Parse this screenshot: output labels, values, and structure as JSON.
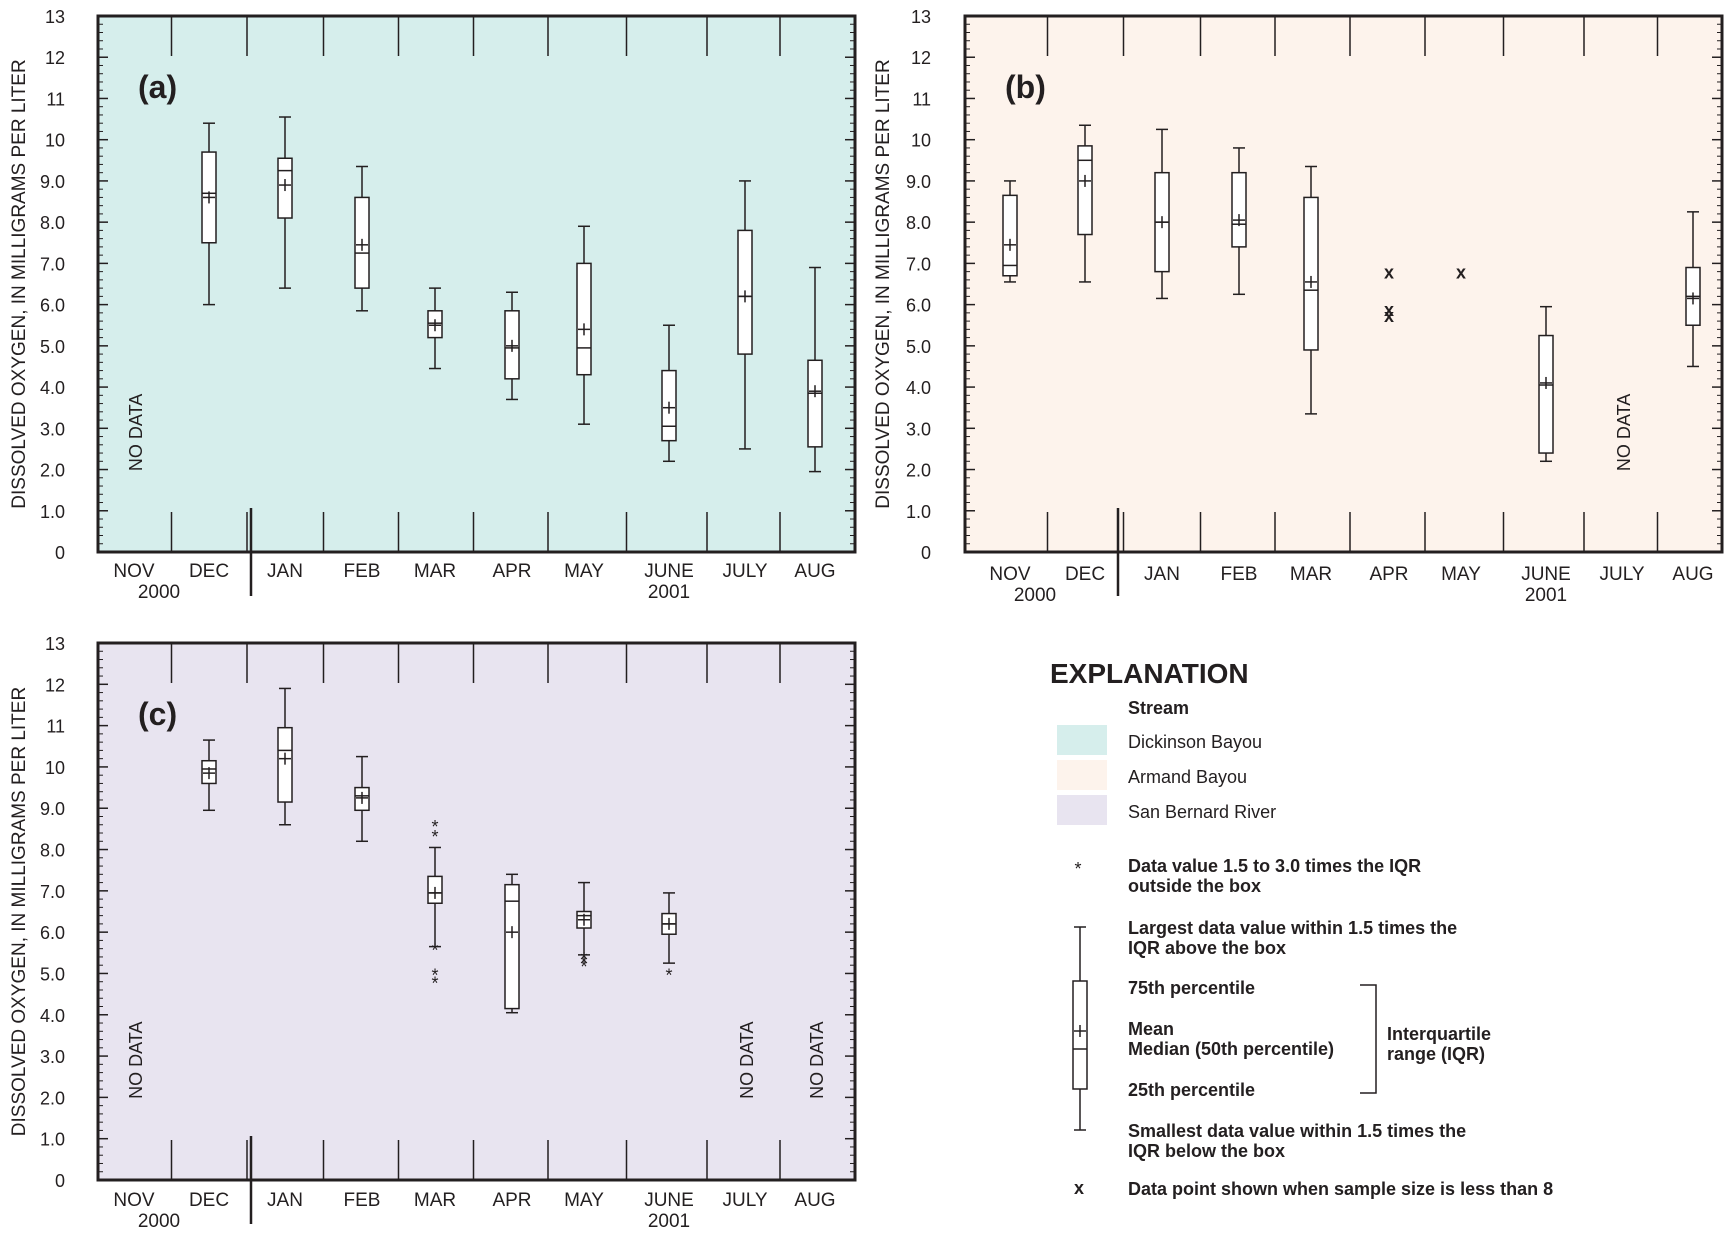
{
  "chart_data": [
    {
      "panel": "(a)",
      "type": "box",
      "ylabel": "DISSOLVED OXYGEN, IN MILLIGRAMS PER LITER",
      "ylim": [
        0,
        13
      ],
      "y_ticks": [
        "0",
        "1.0",
        "2.0",
        "3.0",
        "4.0",
        "5.0",
        "6.0",
        "7.0",
        "8.0",
        "9.0",
        "10",
        "11",
        "12",
        "13"
      ],
      "categories": [
        "NOV",
        "DEC",
        "JAN",
        "FEB",
        "MAR",
        "APR",
        "MAY",
        "JUNE",
        "JULY",
        "AUG"
      ],
      "year_labels": [
        {
          "label": "2000",
          "under": "NOV"
        },
        {
          "label": "2001",
          "under": "JUNE"
        }
      ],
      "background": "#d6eeec",
      "no_data": [
        "NOV"
      ],
      "no_data_label": "NO DATA",
      "boxes": [
        {
          "month": "DEC",
          "min": 6.0,
          "q1": 7.5,
          "median": 8.7,
          "mean": 8.6,
          "q3": 9.7,
          "max": 10.4
        },
        {
          "month": "JAN",
          "min": 6.4,
          "q1": 8.1,
          "median": 9.25,
          "mean": 8.9,
          "q3": 9.55,
          "max": 10.55
        },
        {
          "month": "FEB",
          "min": 5.85,
          "q1": 6.4,
          "median": 7.25,
          "mean": 7.45,
          "q3": 8.6,
          "max": 9.35
        },
        {
          "month": "MAR",
          "min": 4.45,
          "q1": 5.2,
          "median": 5.55,
          "mean": 5.5,
          "q3": 5.85,
          "max": 6.4
        },
        {
          "month": "APR",
          "min": 3.7,
          "q1": 4.2,
          "median": 4.95,
          "mean": 5.0,
          "q3": 5.85,
          "max": 6.3
        },
        {
          "month": "MAY",
          "min": 3.1,
          "q1": 4.3,
          "median": 4.95,
          "mean": 5.4,
          "q3": 7.0,
          "max": 7.9
        },
        {
          "month": "JUNE",
          "min": 2.2,
          "q1": 2.7,
          "median": 3.05,
          "mean": 3.5,
          "q3": 4.4,
          "max": 5.5
        },
        {
          "month": "JULY",
          "min": 2.5,
          "q1": 4.8,
          "median": 6.2,
          "mean": 6.2,
          "q3": 7.8,
          "max": 9.0
        },
        {
          "month": "AUG",
          "min": 1.95,
          "q1": 2.55,
          "median": 3.85,
          "mean": 3.9,
          "q3": 4.65,
          "max": 6.9
        }
      ]
    },
    {
      "panel": "(b)",
      "type": "box",
      "ylabel": "DISSOLVED OXYGEN, IN MILLIGRAMS PER LITER",
      "ylim": [
        0,
        13
      ],
      "y_ticks": [
        "0",
        "1.0",
        "2.0",
        "3.0",
        "4.0",
        "5.0",
        "6.0",
        "7.0",
        "8.0",
        "9.0",
        "10",
        "11",
        "12",
        "13"
      ],
      "categories": [
        "NOV",
        "DEC",
        "JAN",
        "FEB",
        "MAR",
        "APR",
        "MAY",
        "JUNE",
        "JULY",
        "AUG"
      ],
      "year_labels": [
        {
          "label": "2000",
          "under": "NOV"
        },
        {
          "label": "2001",
          "under": "JUNE"
        }
      ],
      "background": "#fdf3ec",
      "no_data": [
        "JULY"
      ],
      "no_data_label": "NO DATA",
      "boxes": [
        {
          "month": "NOV",
          "min": 6.55,
          "q1": 6.7,
          "median": 6.95,
          "mean": 7.45,
          "q3": 8.65,
          "max": 9.0
        },
        {
          "month": "DEC",
          "min": 6.55,
          "q1": 7.7,
          "median": 9.5,
          "mean": 9.0,
          "q3": 9.85,
          "max": 10.35
        },
        {
          "month": "JAN",
          "min": 6.15,
          "q1": 6.8,
          "median": 8.0,
          "mean": 8.0,
          "q3": 9.2,
          "max": 10.25
        },
        {
          "month": "FEB",
          "min": 6.25,
          "q1": 7.4,
          "median": 7.95,
          "mean": 8.05,
          "q3": 9.2,
          "max": 9.8
        },
        {
          "month": "MAR",
          "min": 3.35,
          "q1": 4.9,
          "median": 6.35,
          "mean": 6.55,
          "q3": 8.6,
          "max": 9.35
        },
        {
          "month": "JUNE",
          "min": 2.2,
          "q1": 2.4,
          "median": 4.05,
          "mean": 4.1,
          "q3": 5.25,
          "max": 5.95
        },
        {
          "month": "AUG",
          "min": 4.5,
          "q1": 5.5,
          "median": 6.2,
          "mean": 6.15,
          "q3": 6.9,
          "max": 8.25
        }
      ],
      "small_sample_points": [
        {
          "month": "APR",
          "values": [
            6.75,
            5.85,
            5.7
          ]
        },
        {
          "month": "MAY",
          "values": [
            6.75
          ]
        }
      ]
    },
    {
      "panel": "(c)",
      "type": "box",
      "ylabel": "DISSOLVED OXYGEN, IN MILLIGRAMS PER LITER",
      "ylim": [
        0,
        13
      ],
      "y_ticks": [
        "0",
        "1.0",
        "2.0",
        "3.0",
        "4.0",
        "5.0",
        "6.0",
        "7.0",
        "8.0",
        "9.0",
        "10",
        "11",
        "12",
        "13"
      ],
      "categories": [
        "NOV",
        "DEC",
        "JAN",
        "FEB",
        "MAR",
        "APR",
        "MAY",
        "JUNE",
        "JULY",
        "AUG"
      ],
      "year_labels": [
        {
          "label": "2000",
          "under": "NOV"
        },
        {
          "label": "2001",
          "under": "JUNE"
        }
      ],
      "background": "#e8e4f0",
      "no_data": [
        "NOV",
        "JULY",
        "AUG"
      ],
      "no_data_label": "NO DATA",
      "boxes": [
        {
          "month": "DEC",
          "min": 8.95,
          "q1": 9.6,
          "median": 9.95,
          "mean": 9.85,
          "q3": 10.15,
          "max": 10.65
        },
        {
          "month": "JAN",
          "min": 8.6,
          "q1": 9.15,
          "median": 10.4,
          "mean": 10.2,
          "q3": 10.95,
          "max": 11.9
        },
        {
          "month": "FEB",
          "min": 8.2,
          "q1": 8.95,
          "median": 9.3,
          "mean": 9.25,
          "q3": 9.5,
          "max": 10.25
        },
        {
          "month": "MAR",
          "min": 5.65,
          "q1": 6.7,
          "median": 6.95,
          "mean": 6.95,
          "q3": 7.35,
          "max": 8.05
        },
        {
          "month": "APR",
          "min": 4.05,
          "q1": 4.15,
          "median": 6.75,
          "mean": 6.0,
          "q3": 7.15,
          "max": 7.4
        },
        {
          "month": "MAY",
          "min": 5.45,
          "q1": 6.1,
          "median": 6.4,
          "mean": 6.3,
          "q3": 6.5,
          "max": 7.2
        },
        {
          "month": "JUNE",
          "min": 5.25,
          "q1": 5.95,
          "median": 6.2,
          "mean": 6.2,
          "q3": 6.45,
          "max": 6.95
        }
      ],
      "outliers": [
        {
          "month": "MAR",
          "values": [
            8.6,
            8.35,
            5.6,
            5.0,
            4.8
          ]
        },
        {
          "month": "MAY",
          "values": [
            5.4,
            5.3,
            5.2
          ]
        },
        {
          "month": "JUNE",
          "values": [
            5.0
          ]
        }
      ]
    }
  ],
  "legend": {
    "title": "EXPLANATION",
    "stream_header": "Stream",
    "streams": [
      {
        "name": "Dickinson Bayou",
        "color": "#d6eeec"
      },
      {
        "name": "Armand Bayou",
        "color": "#fdf3ec"
      },
      {
        "name": "San Bernard River",
        "color": "#e8e4f0"
      }
    ],
    "outlier_line1": "Data value 1.5 to 3.0 times the IQR",
    "outlier_line2": "outside the box",
    "largest_line1": "Largest data value within 1.5 times the",
    "largest_line2": "IQR above the box",
    "p75": "75th percentile",
    "mean": "Mean",
    "median": "Median (50th percentile)",
    "p25": "25th percentile",
    "iqr_line1": "Interquartile",
    "iqr_line2": "range (IQR)",
    "smallest_line1": "Smallest data value within 1.5 times the",
    "smallest_line2": "IQR below the box",
    "small_sample": "Data point shown when sample size is less than 8"
  }
}
